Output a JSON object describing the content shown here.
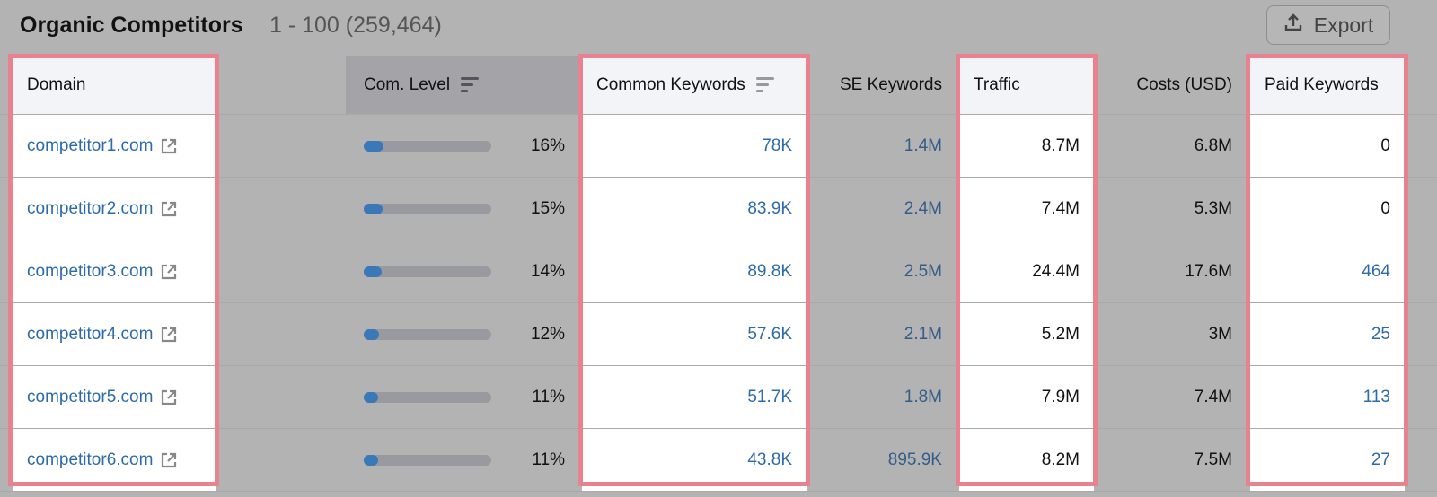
{
  "header": {
    "title": "Organic Competitors",
    "range": "1 - 100 (259,464)",
    "export_label": "Export"
  },
  "columns": {
    "domain": "Domain",
    "com_level": "Com. Level",
    "common_keywords": "Common Keywords",
    "se_keywords": "SE Keywords",
    "traffic": "Traffic",
    "costs": "Costs (USD)",
    "paid_keywords": "Paid Keywords"
  },
  "colors": {
    "highlight": "#e9828f",
    "link": "#2c6aa8",
    "bar_fill": "#3a78b8"
  },
  "rows": [
    {
      "domain": "competitor1.com",
      "com_level": "16%",
      "level": 16,
      "common_keywords": "78K",
      "se_keywords": "1.4M",
      "traffic": "8.7M",
      "costs": "6.8M",
      "paid_keywords": "0"
    },
    {
      "domain": "competitor2.com",
      "com_level": "15%",
      "level": 15,
      "common_keywords": "83.9K",
      "se_keywords": "2.4M",
      "traffic": "7.4M",
      "costs": "5.3M",
      "paid_keywords": "0"
    },
    {
      "domain": "competitor3.com",
      "com_level": "14%",
      "level": 14,
      "common_keywords": "89.8K",
      "se_keywords": "2.5M",
      "traffic": "24.4M",
      "costs": "17.6M",
      "paid_keywords": "464"
    },
    {
      "domain": "competitor4.com",
      "com_level": "12%",
      "level": 12,
      "common_keywords": "57.6K",
      "se_keywords": "2.1M",
      "traffic": "5.2M",
      "costs": "3M",
      "paid_keywords": "25"
    },
    {
      "domain": "competitor5.com",
      "com_level": "11%",
      "level": 11,
      "common_keywords": "51.7K",
      "se_keywords": "1.8M",
      "traffic": "7.9M",
      "costs": "7.4M",
      "paid_keywords": "113"
    },
    {
      "domain": "competitor6.com",
      "com_level": "11%",
      "level": 11,
      "common_keywords": "43.8K",
      "se_keywords": "895.9K",
      "traffic": "8.2M",
      "costs": "7.5M",
      "paid_keywords": "27"
    }
  ]
}
